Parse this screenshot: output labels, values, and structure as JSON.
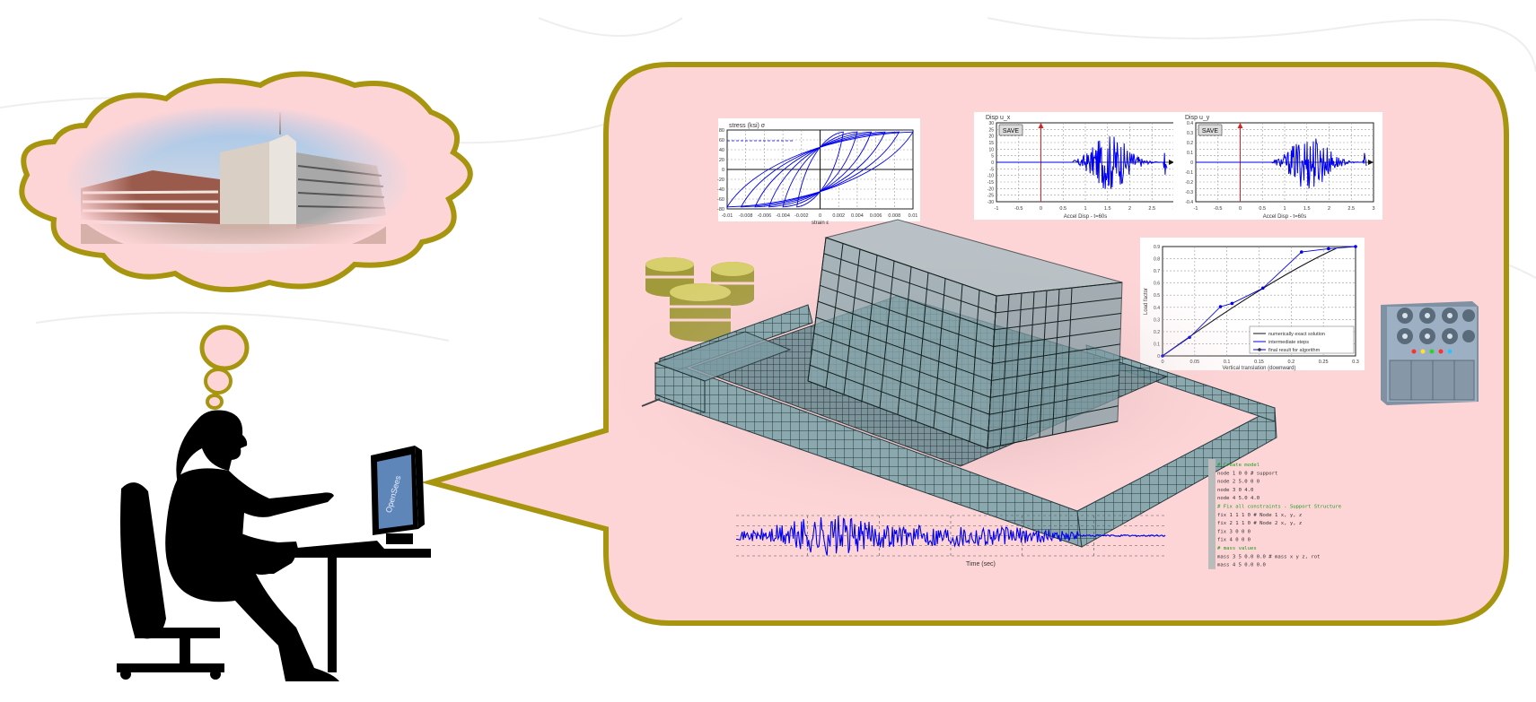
{
  "colors": {
    "bubble_fill": "#fdd5d7",
    "bubble_stroke": "#a8950f",
    "silhouette": "#000000",
    "plot_line": "#0000ee",
    "grid": "#9a9a9a",
    "database": "#a09a3a",
    "server_body": "#8fa2b4",
    "mesh": "#5f7f88",
    "console_text": "#1aa01a"
  },
  "icons": {
    "database": "database-icon",
    "server": "server-icon",
    "person": "person-at-computer-icon"
  },
  "charts": {
    "top_left": {
      "title": "stress (ksi) σ",
      "xticks": [
        "-0.01",
        "-0.008",
        "-0.006",
        "-0.004",
        "-0.002",
        "0",
        "0.002",
        "0.004",
        "0.006",
        "0.008",
        "0.01"
      ],
      "yticks": [
        "80",
        "60",
        "40",
        "20",
        "0",
        "-20",
        "-40",
        "-60",
        "-80"
      ],
      "xlabel": "strain ε"
    },
    "top_mid": {
      "title": "Disp u_x",
      "save_label": "SAVE",
      "yticks": [
        "30",
        "25",
        "20",
        "15",
        "10",
        "5",
        "0",
        "-5",
        "-10",
        "-15",
        "-20",
        "-25",
        "-30"
      ],
      "xticks": [
        "-1",
        "-0.5",
        "0",
        "0.5",
        "1",
        "1.5",
        "2",
        "2.5",
        "3"
      ],
      "xlabel": "Accel Disp - t=60s"
    },
    "top_right": {
      "title": "Disp u_y",
      "save_label": "SAVE",
      "yticks": [
        "0.4",
        "0.3",
        "0.2",
        "0.1",
        "0",
        "-0.1",
        "-0.2",
        "-0.3",
        "-0.4"
      ],
      "xticks": [
        "-1",
        "-0.5",
        "0",
        "0.5",
        "1",
        "1.5",
        "2",
        "2.5",
        "3"
      ],
      "xlabel": "Accel Disp - t=60s"
    },
    "pushover": {
      "ylabel": "Load factor",
      "xlabel": "Vertical translation (downward)",
      "yticks": [
        "0.9",
        "0.8",
        "0.7",
        "0.6",
        "0.5",
        "0.4",
        "0.3",
        "0.2",
        "0.1",
        "0"
      ],
      "xticks": [
        "0",
        "0.05",
        "0.1",
        "0.15",
        "0.2",
        "0.25",
        "0.3"
      ],
      "legend": [
        "numerically exact solution",
        "intermediate steps",
        "final result for algorithm"
      ]
    },
    "ground_motion": {
      "xlabel": "Time (sec)"
    }
  },
  "console": {
    "lines": [
      "# Create model",
      "node 1 0 0          # support",
      "node 2 5.0 0 0",
      "node 3 0 4.0",
      "node 4 5.0 4.0",
      "# Fix all constraints - Support Structure",
      "fix 1 1 1 0         # Node 1 x, y, z",
      "fix 2 1 1 0         # Node 2 x, y, z",
      "fix 3 0 0 0",
      "fix 4 0 0 0",
      "# mass values",
      "mass 3 5 0.0 0.0    # mass x y z, rot",
      "mass 4 5 0.0 0.0"
    ]
  },
  "monitor_text": "OpenSees"
}
